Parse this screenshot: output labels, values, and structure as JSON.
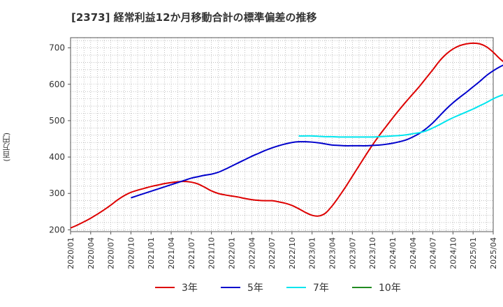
{
  "chart_data": {
    "type": "line",
    "title": "[2373]  経常利益12か月移動合計の標準偏差の推移",
    "ylabel": "(百万円)",
    "xlabel": "",
    "ylim": [
      195,
      728
    ],
    "yticks": [
      200,
      300,
      400,
      500,
      600,
      700
    ],
    "x_ticks": [
      "2020/01",
      "2020/04",
      "2020/07",
      "2020/10",
      "2021/01",
      "2021/04",
      "2021/07",
      "2021/10",
      "2022/01",
      "2022/04",
      "2022/07",
      "2022/10",
      "2023/01",
      "2023/04",
      "2023/07",
      "2023/10",
      "2024/01",
      "2024/04",
      "2024/07",
      "2024/10",
      "2025/01",
      "2025/04"
    ],
    "grid": true,
    "legend_position": "bottom",
    "series": [
      {
        "name": "3年",
        "color": "#dd0000",
        "points": [
          [
            "2020/01",
            205
          ],
          [
            "2020/02",
            213
          ],
          [
            "2020/03",
            222
          ],
          [
            "2020/04",
            232
          ],
          [
            "2020/05",
            243
          ],
          [
            "2020/06",
            255
          ],
          [
            "2020/07",
            268
          ],
          [
            "2020/08",
            282
          ],
          [
            "2020/09",
            294
          ],
          [
            "2020/10",
            303
          ],
          [
            "2020/11",
            309
          ],
          [
            "2020/12",
            314
          ],
          [
            "2021/01",
            319
          ],
          [
            "2021/02",
            323
          ],
          [
            "2021/03",
            327
          ],
          [
            "2021/04",
            330
          ],
          [
            "2021/05",
            332
          ],
          [
            "2021/06",
            333
          ],
          [
            "2021/07",
            331
          ],
          [
            "2021/08",
            326
          ],
          [
            "2021/09",
            317
          ],
          [
            "2021/10",
            307
          ],
          [
            "2021/11",
            300
          ],
          [
            "2021/12",
            296
          ],
          [
            "2022/01",
            293
          ],
          [
            "2022/02",
            290
          ],
          [
            "2022/03",
            286
          ],
          [
            "2022/04",
            283
          ],
          [
            "2022/05",
            281
          ],
          [
            "2022/06",
            280
          ],
          [
            "2022/07",
            280
          ],
          [
            "2022/08",
            277
          ],
          [
            "2022/09",
            273
          ],
          [
            "2022/10",
            267
          ],
          [
            "2022/11",
            258
          ],
          [
            "2022/12",
            248
          ],
          [
            "2023/01",
            240
          ],
          [
            "2023/02",
            238
          ],
          [
            "2023/03",
            246
          ],
          [
            "2023/04",
            266
          ],
          [
            "2023/05",
            291
          ],
          [
            "2023/06",
            318
          ],
          [
            "2023/07",
            347
          ],
          [
            "2023/08",
            376
          ],
          [
            "2023/09",
            405
          ],
          [
            "2023/10",
            433
          ],
          [
            "2023/11",
            459
          ],
          [
            "2023/12",
            483
          ],
          [
            "2024/01",
            507
          ],
          [
            "2024/02",
            530
          ],
          [
            "2024/03",
            552
          ],
          [
            "2024/04",
            573
          ],
          [
            "2024/05",
            594
          ],
          [
            "2024/06",
            617
          ],
          [
            "2024/07",
            640
          ],
          [
            "2024/08",
            664
          ],
          [
            "2024/09",
            683
          ],
          [
            "2024/10",
            697
          ],
          [
            "2024/11",
            706
          ],
          [
            "2024/12",
            711
          ],
          [
            "2025/01",
            713
          ],
          [
            "2025/02",
            711
          ],
          [
            "2025/03",
            703
          ],
          [
            "2025/04",
            688
          ],
          [
            "2025/05",
            670
          ],
          [
            "2025/06",
            655
          ]
        ]
      },
      {
        "name": "5年",
        "color": "#0000cc",
        "points": [
          [
            "2020/10",
            288
          ],
          [
            "2020/11",
            294
          ],
          [
            "2020/12",
            300
          ],
          [
            "2021/01",
            306
          ],
          [
            "2021/02",
            312
          ],
          [
            "2021/03",
            318
          ],
          [
            "2021/04",
            324
          ],
          [
            "2021/05",
            330
          ],
          [
            "2021/06",
            336
          ],
          [
            "2021/07",
            342
          ],
          [
            "2021/08",
            346
          ],
          [
            "2021/09",
            350
          ],
          [
            "2021/10",
            353
          ],
          [
            "2021/11",
            358
          ],
          [
            "2021/12",
            366
          ],
          [
            "2022/01",
            375
          ],
          [
            "2022/02",
            384
          ],
          [
            "2022/03",
            393
          ],
          [
            "2022/04",
            402
          ],
          [
            "2022/05",
            410
          ],
          [
            "2022/06",
            418
          ],
          [
            "2022/07",
            425
          ],
          [
            "2022/08",
            431
          ],
          [
            "2022/09",
            436
          ],
          [
            "2022/10",
            440
          ],
          [
            "2022/11",
            442
          ],
          [
            "2022/12",
            442
          ],
          [
            "2023/01",
            441
          ],
          [
            "2023/02",
            439
          ],
          [
            "2023/03",
            436
          ],
          [
            "2023/04",
            433
          ],
          [
            "2023/05",
            432
          ],
          [
            "2023/06",
            431
          ],
          [
            "2023/07",
            431
          ],
          [
            "2023/08",
            431
          ],
          [
            "2023/09",
            431
          ],
          [
            "2023/10",
            432
          ],
          [
            "2023/11",
            433
          ],
          [
            "2023/12",
            435
          ],
          [
            "2024/01",
            438
          ],
          [
            "2024/02",
            442
          ],
          [
            "2024/03",
            447
          ],
          [
            "2024/04",
            455
          ],
          [
            "2024/05",
            465
          ],
          [
            "2024/06",
            478
          ],
          [
            "2024/07",
            494
          ],
          [
            "2024/08",
            513
          ],
          [
            "2024/09",
            532
          ],
          [
            "2024/10",
            549
          ],
          [
            "2024/11",
            564
          ],
          [
            "2024/12",
            578
          ],
          [
            "2025/01",
            593
          ],
          [
            "2025/02",
            608
          ],
          [
            "2025/03",
            624
          ],
          [
            "2025/04",
            637
          ],
          [
            "2025/05",
            648
          ],
          [
            "2025/06",
            656
          ],
          [
            "2025/07",
            659
          ]
        ]
      },
      {
        "name": "7年",
        "color": "#00e5ee",
        "points": [
          [
            "2022/11",
            458
          ],
          [
            "2022/12",
            458
          ],
          [
            "2023/01",
            458
          ],
          [
            "2023/02",
            457
          ],
          [
            "2023/03",
            456
          ],
          [
            "2023/04",
            456
          ],
          [
            "2023/05",
            455
          ],
          [
            "2023/06",
            455
          ],
          [
            "2023/07",
            455
          ],
          [
            "2023/08",
            455
          ],
          [
            "2023/09",
            455
          ],
          [
            "2023/10",
            455
          ],
          [
            "2023/11",
            456
          ],
          [
            "2023/12",
            457
          ],
          [
            "2024/01",
            458
          ],
          [
            "2024/02",
            459
          ],
          [
            "2024/03",
            461
          ],
          [
            "2024/04",
            464
          ],
          [
            "2024/05",
            467
          ],
          [
            "2024/06",
            472
          ],
          [
            "2024/07",
            480
          ],
          [
            "2024/08",
            489
          ],
          [
            "2024/09",
            499
          ],
          [
            "2024/10",
            508
          ],
          [
            "2024/11",
            516
          ],
          [
            "2024/12",
            524
          ],
          [
            "2025/01",
            532
          ],
          [
            "2025/02",
            541
          ],
          [
            "2025/03",
            550
          ],
          [
            "2025/04",
            560
          ],
          [
            "2025/05",
            568
          ],
          [
            "2025/06",
            574
          ],
          [
            "2025/07",
            578
          ]
        ]
      },
      {
        "name": "10年",
        "color": "#228b22",
        "points": []
      }
    ]
  }
}
